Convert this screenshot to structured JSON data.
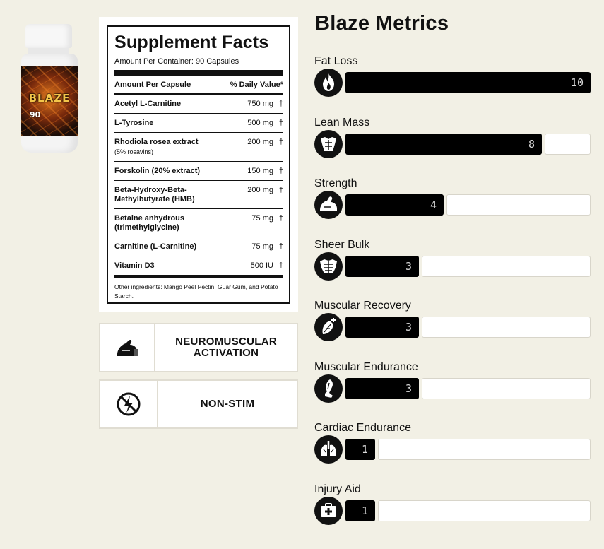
{
  "product": {
    "logo_text": "BLAZE",
    "count_text": "90"
  },
  "facts": {
    "title": "Supplement Facts",
    "serving": "Amount Per Container: 90 Capsules",
    "col_left": "Amount Per Capsule",
    "col_right": "% Daily Value*",
    "rows": [
      {
        "name": "Acetyl L-Carnitine",
        "sub": "",
        "amount": "750 mg",
        "dv": "†"
      },
      {
        "name": "L-Tyrosine",
        "sub": "",
        "amount": "500 mg",
        "dv": "†"
      },
      {
        "name": "Rhodiola rosea extract",
        "sub": "(5% rosavins)",
        "amount": "200 mg",
        "dv": "†"
      },
      {
        "name": "Forskolin (20% extract)",
        "sub": "",
        "amount": "150 mg",
        "dv": "†"
      },
      {
        "name": "Beta-Hydroxy-Beta-Methylbutyrate (HMB)",
        "sub": "",
        "amount": "200 mg",
        "dv": "†"
      },
      {
        "name": "Betaine anhydrous (trimethylglycine)",
        "sub": "",
        "amount": "75 mg",
        "dv": "†"
      },
      {
        "name": "Carnitine (L-Carnitine)",
        "sub": "",
        "amount": "75 mg",
        "dv": "†"
      },
      {
        "name": "Vitamin D3",
        "sub": "",
        "amount": "500 IU",
        "dv": "†"
      }
    ],
    "other": "Other ingredients: Mango Peel Pectin, Guar Gum, and Potato Starch."
  },
  "badges": [
    {
      "icon": "flexed-arm-icon",
      "text": "NEUROMUSCULAR ACTIVATION"
    },
    {
      "icon": "no-stim-icon",
      "text": "NON-STIM"
    }
  ],
  "metrics": {
    "title": "Blaze Metrics",
    "max": 10,
    "items": [
      {
        "label": "Fat Loss",
        "value": 10,
        "icon": "flame-icon"
      },
      {
        "label": "Lean Mass",
        "value": 8,
        "icon": "torso-icon"
      },
      {
        "label": "Strength",
        "value": 4,
        "icon": "bicep-icon"
      },
      {
        "label": "Sheer Bulk",
        "value": 3,
        "icon": "muscle-torso-icon"
      },
      {
        "label": "Muscular Recovery",
        "value": 3,
        "icon": "muscle-repair-icon"
      },
      {
        "label": "Muscular Endurance",
        "value": 3,
        "icon": "leg-muscle-icon"
      },
      {
        "label": "Cardiac Endurance",
        "value": 1,
        "icon": "lungs-icon"
      },
      {
        "label": "Injury Aid",
        "value": 1,
        "icon": "first-aid-icon"
      }
    ]
  }
}
